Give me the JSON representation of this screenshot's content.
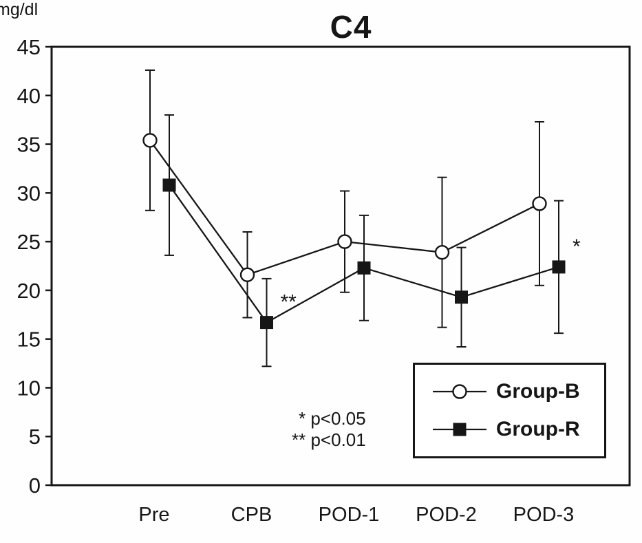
{
  "page": {
    "background_color": "#ffffff",
    "ink_color": "#161616"
  },
  "chart_data": {
    "type": "line",
    "title": "C4",
    "ylabel": "mg/dl",
    "xlabel": "",
    "categories": [
      "Pre",
      "CPB",
      "POD-1",
      "POD-2",
      "POD-3"
    ],
    "ylim": [
      0,
      45
    ],
    "ytick_step": 5,
    "ytick_labels": [
      "0",
      "5",
      "10",
      "15",
      "20",
      "25",
      "30",
      "35",
      "40",
      "45"
    ],
    "grid": false,
    "error_bars": true,
    "series": [
      {
        "name": "Group-B",
        "marker": "open-circle",
        "color": "#161616",
        "values": [
          35.4,
          21.6,
          25.0,
          23.9,
          28.9
        ],
        "errors": [
          7.2,
          4.4,
          5.2,
          7.7,
          8.4
        ]
      },
      {
        "name": "Group-R",
        "marker": "filled-square",
        "color": "#161616",
        "values": [
          30.8,
          16.7,
          22.3,
          19.3,
          22.4
        ],
        "errors": [
          7.2,
          4.5,
          5.4,
          5.1,
          6.8
        ]
      }
    ],
    "significance_markers": [
      {
        "symbol": "**",
        "series": "Group-R",
        "category": "CPB"
      },
      {
        "symbol": "*",
        "series": "Group-R",
        "category": "POD-3"
      }
    ],
    "legend": {
      "position": "bottom-right",
      "entries": [
        {
          "label": "Group-B",
          "marker": "open-circle"
        },
        {
          "label": "Group-R",
          "marker": "filled-square"
        }
      ]
    },
    "footnotes": [
      "* p<0.05",
      "** p<0.01"
    ]
  }
}
